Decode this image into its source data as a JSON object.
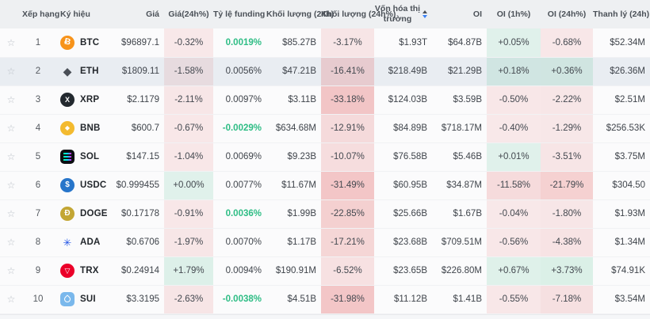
{
  "colors": {
    "header_bg": "#eef0f2",
    "header_text": "#4b5158",
    "row_bg": "#fbfbfc",
    "row_hover_bg": "#e9edf2",
    "green_text": "#2ebd85",
    "cell_red_rgb": "224,76,76",
    "cell_green_rgb": "46,180,120",
    "sort_up": "#4b5056",
    "sort_down": "#3b82f6"
  },
  "ui": {
    "hovered_symbol": "ETH",
    "sorted_column": "mcap",
    "sort_direction": "desc"
  },
  "columns": [
    {
      "key": "fav",
      "label": "",
      "align": "center",
      "width": 28
    },
    {
      "key": "rank",
      "label": "Xếp hạng",
      "align": "center",
      "width": 40
    },
    {
      "key": "symbol",
      "label": "Ký hiệu",
      "align": "left",
      "width": 76
    },
    {
      "key": "price",
      "label": "Giá",
      "align": "right",
      "width": 63
    },
    {
      "key": "chg24h",
      "label": "Giá(24h%)",
      "align": "center",
      "width": 62,
      "pct": true
    },
    {
      "key": "funding",
      "label": "Tỷ lệ funding",
      "align": "right",
      "width": 67
    },
    {
      "key": "vol24h",
      "label": "Khối lượng (24h)",
      "align": "right",
      "width": 69
    },
    {
      "key": "vol24hPct",
      "label": "Khối lượng (24h%)",
      "align": "center",
      "width": 67,
      "pct": true
    },
    {
      "key": "mcap",
      "label": "Vốn hóa thị trường",
      "align": "right",
      "width": 73,
      "sortable": true,
      "wrap": true
    },
    {
      "key": "oi",
      "label": "OI",
      "align": "right",
      "width": 69
    },
    {
      "key": "oi1hPct",
      "label": "OI (1h%)",
      "align": "center",
      "width": 68,
      "pct": true
    },
    {
      "key": "oi24hPct",
      "label": "OI (24h%)",
      "align": "center",
      "width": 66,
      "pct": true
    },
    {
      "key": "liq24h",
      "label": "Thanh lý (24h)",
      "align": "right",
      "width": 72
    }
  ],
  "rows": [
    {
      "rank": 1,
      "symbol": "BTC",
      "icon": {
        "shape": "circle",
        "bg": "#f7931a",
        "glyph": "Ƀ",
        "color": "#ffffff",
        "size": 11,
        "tilt": true
      },
      "price": "$96897.1",
      "chg24h": "-0.32%",
      "funding": "0.0019%",
      "funding_green": true,
      "vol24h": "$85.27B",
      "vol24hPct": "-3.17%",
      "mcap": "$1.93T",
      "oi": "$64.87B",
      "oi1hPct": "+0.05%",
      "oi24hPct": "-0.68%",
      "liq24h": "$52.34M"
    },
    {
      "rank": 2,
      "symbol": "ETH",
      "icon": {
        "shape": "none",
        "glyph": "◆",
        "color": "#4a4f57",
        "size": 14
      },
      "price": "$1809.11",
      "chg24h": "-1.58%",
      "funding": "0.0056%",
      "funding_green": false,
      "vol24h": "$47.21B",
      "vol24hPct": "-16.41%",
      "mcap": "$218.49B",
      "oi": "$21.29B",
      "oi1hPct": "+0.18%",
      "oi24hPct": "+0.36%",
      "liq24h": "$26.36M"
    },
    {
      "rank": 3,
      "symbol": "XRP",
      "icon": {
        "shape": "circle",
        "bg": "#23292f",
        "glyph": "X",
        "color": "#ffffff",
        "size": 9
      },
      "price": "$2.1179",
      "chg24h": "-2.11%",
      "funding": "0.0097%",
      "funding_green": false,
      "vol24h": "$3.11B",
      "vol24hPct": "-33.18%",
      "mcap": "$124.03B",
      "oi": "$3.59B",
      "oi1hPct": "-0.50%",
      "oi24hPct": "-2.22%",
      "liq24h": "$2.51M"
    },
    {
      "rank": 4,
      "symbol": "BNB",
      "icon": {
        "shape": "circle",
        "bg": "#f3ba2f",
        "glyph": "◆",
        "color": "#ffffff",
        "size": 8
      },
      "price": "$600.7",
      "chg24h": "-0.67%",
      "funding": "-0.0029%",
      "funding_green": true,
      "vol24h": "$634.68M",
      "vol24hPct": "-12.91%",
      "mcap": "$84.89B",
      "oi": "$718.17M",
      "oi1hPct": "-0.40%",
      "oi24hPct": "-1.29%",
      "liq24h": "$256.53K"
    },
    {
      "rank": 5,
      "symbol": "SOL",
      "icon": {
        "shape": "rounded",
        "bg": "#0c0e12",
        "special": "sol-bars"
      },
      "price": "$147.15",
      "chg24h": "-1.04%",
      "funding": "0.0069%",
      "funding_green": false,
      "vol24h": "$9.23B",
      "vol24hPct": "-10.07%",
      "mcap": "$76.58B",
      "oi": "$5.46B",
      "oi1hPct": "+0.01%",
      "oi24hPct": "-3.51%",
      "liq24h": "$3.75M"
    },
    {
      "rank": 6,
      "symbol": "USDC",
      "icon": {
        "shape": "circle",
        "bg": "#2775ca",
        "glyph": "$",
        "color": "#ffffff",
        "size": 10
      },
      "price": "$0.999455",
      "chg24h": "+0.00%",
      "funding": "0.0077%",
      "funding_green": false,
      "vol24h": "$11.67M",
      "vol24hPct": "-31.49%",
      "mcap": "$60.95B",
      "oi": "$34.87M",
      "oi1hPct": "-11.58%",
      "oi24hPct": "-21.79%",
      "liq24h": "$304.50"
    },
    {
      "rank": 7,
      "symbol": "DOGE",
      "icon": {
        "shape": "circle",
        "bg": "#c3a634",
        "glyph": "Đ",
        "color": "#ffffff",
        "size": 10
      },
      "price": "$0.17178",
      "chg24h": "-0.91%",
      "funding": "0.0036%",
      "funding_green": true,
      "vol24h": "$1.99B",
      "vol24hPct": "-22.85%",
      "mcap": "$25.66B",
      "oi": "$1.67B",
      "oi1hPct": "-0.04%",
      "oi24hPct": "-1.80%",
      "liq24h": "$1.93M"
    },
    {
      "rank": 8,
      "symbol": "ADA",
      "icon": {
        "shape": "none",
        "glyph": "✳",
        "color": "#2456e6",
        "size": 13
      },
      "price": "$0.6706",
      "chg24h": "-1.97%",
      "funding": "0.0070%",
      "funding_green": false,
      "vol24h": "$1.17B",
      "vol24hPct": "-17.21%",
      "mcap": "$23.68B",
      "oi": "$709.51M",
      "oi1hPct": "-0.56%",
      "oi24hPct": "-4.38%",
      "liq24h": "$1.34M"
    },
    {
      "rank": 9,
      "symbol": "TRX",
      "icon": {
        "shape": "circle",
        "bg": "#eb0029",
        "glyph": "▽",
        "color": "#ffffff",
        "size": 9
      },
      "price": "$0.24914",
      "chg24h": "+1.79%",
      "funding": "0.0094%",
      "funding_green": false,
      "vol24h": "$190.91M",
      "vol24hPct": "-6.52%",
      "mcap": "$23.65B",
      "oi": "$226.80M",
      "oi1hPct": "+0.67%",
      "oi24hPct": "+3.73%",
      "liq24h": "$74.91K"
    },
    {
      "rank": 10,
      "symbol": "SUI",
      "icon": {
        "shape": "rounded",
        "bg": "#7ab8ec",
        "special": "sui-drop"
      },
      "price": "$3.3195",
      "chg24h": "-2.63%",
      "funding": "-0.0038%",
      "funding_green": true,
      "vol24h": "$4.51B",
      "vol24hPct": "-31.98%",
      "mcap": "$11.12B",
      "oi": "$1.41B",
      "oi1hPct": "-0.55%",
      "oi24hPct": "-7.18%",
      "liq24h": "$3.54M"
    }
  ]
}
